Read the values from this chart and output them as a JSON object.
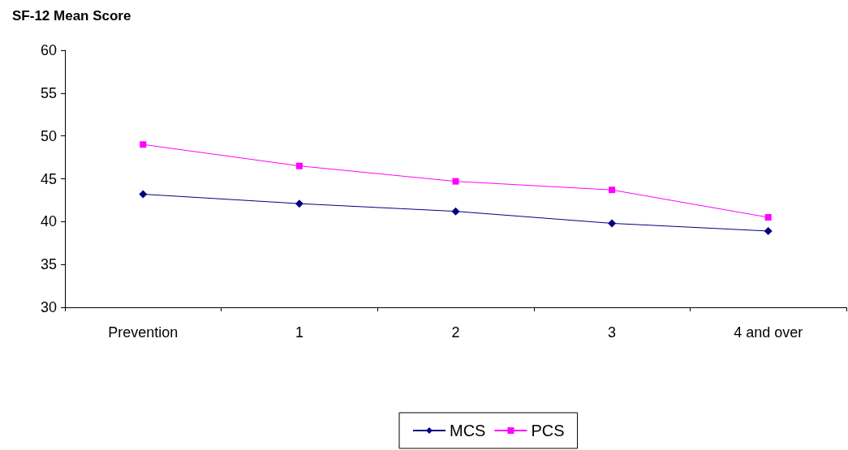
{
  "chart_data": {
    "type": "line",
    "title": "SF-12 Mean Score",
    "categories": [
      "Prevention",
      "1",
      "2",
      "3",
      "4 and over"
    ],
    "series": [
      {
        "name": "MCS",
        "color": "#000080",
        "marker": "diamond",
        "values": [
          43.2,
          42.1,
          41.2,
          39.8,
          38.9
        ]
      },
      {
        "name": "PCS",
        "color": "#ff00ff",
        "marker": "square",
        "values": [
          49.0,
          46.5,
          44.7,
          43.7,
          40.5
        ]
      }
    ],
    "ylim": [
      30,
      60
    ],
    "yticks": [
      30,
      35,
      40,
      45,
      50,
      55,
      60
    ],
    "grid": false,
    "legend": "bottom"
  }
}
